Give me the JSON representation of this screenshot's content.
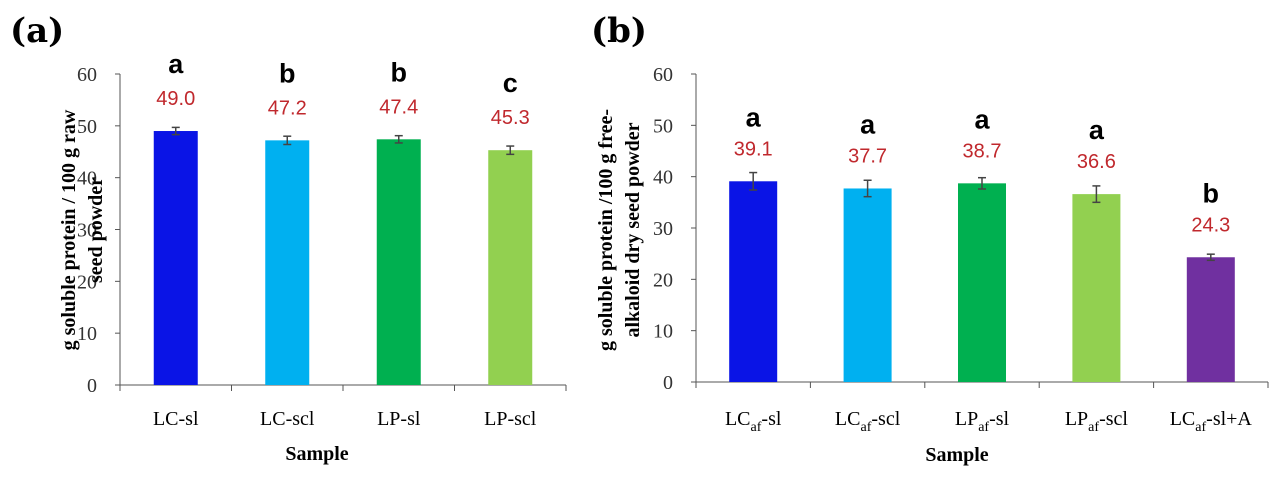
{
  "chart_data": [
    {
      "type": "bar",
      "panel_label": "(a)",
      "title": "",
      "xlabel": "Sample",
      "ylabel_lines": [
        "g soluble protein / 100 g raw",
        "seed powder"
      ],
      "ylim": [
        0,
        60
      ],
      "yticks": [
        "0",
        "10",
        "20",
        "30",
        "40",
        "50",
        "60"
      ],
      "grid": false,
      "categories": [
        {
          "base": "LC-sl"
        },
        {
          "base": "LC-scl"
        },
        {
          "base": "LP-sl"
        },
        {
          "base": "LP-scl"
        }
      ],
      "values": [
        49.0,
        47.2,
        47.4,
        45.3
      ],
      "value_labels": [
        "49.0",
        "47.2",
        "47.4",
        "45.3"
      ],
      "errors": [
        0.7,
        0.8,
        0.7,
        0.8
      ],
      "significance": [
        "a",
        "b",
        "b",
        "c"
      ],
      "colors": [
        "#0A14E6",
        "#00B0F0",
        "#00B050",
        "#92D050"
      ]
    },
    {
      "type": "bar",
      "panel_label": "(b)",
      "title": "",
      "xlabel": "Sample",
      "ylabel_lines": [
        "g soluble protein /100 g free-",
        "alkaloid dry seed powder"
      ],
      "ylim": [
        0,
        60
      ],
      "yticks": [
        "0",
        "10",
        "20",
        "30",
        "40",
        "50",
        "60"
      ],
      "grid": false,
      "categories": [
        {
          "base": "LC",
          "sub": "af",
          "suffix": "-sl"
        },
        {
          "base": "LC",
          "sub": "af",
          "suffix": "-scl"
        },
        {
          "base": "LP",
          "sub": "af",
          "suffix": "-sl"
        },
        {
          "base": "LP",
          "sub": "af",
          "suffix": "-scl"
        },
        {
          "base": "LC",
          "sub": "af",
          "suffix": "-sl+A"
        }
      ],
      "values": [
        39.1,
        37.7,
        38.7,
        36.6,
        24.3
      ],
      "value_labels": [
        "39.1",
        "37.7",
        "38.7",
        "36.6",
        "24.3"
      ],
      "errors": [
        1.7,
        1.6,
        1.1,
        1.6,
        0.6
      ],
      "significance": [
        "a",
        "a",
        "a",
        "a",
        "b"
      ],
      "colors": [
        "#0A14E6",
        "#00B0F0",
        "#00B050",
        "#92D050",
        "#7030A0"
      ]
    }
  ]
}
